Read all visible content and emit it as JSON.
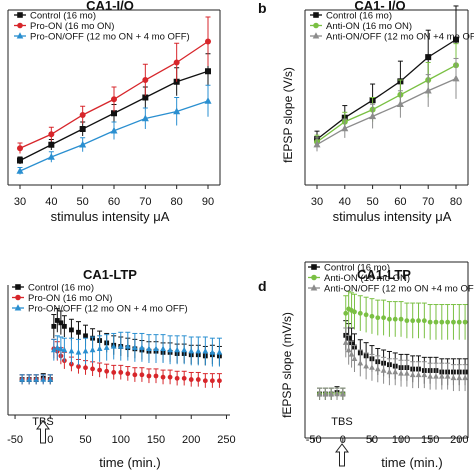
{
  "panels": [
    {
      "letter": "",
      "title": "CA1-I/O",
      "ylabel": "",
      "xlabel": "stimulus intensity μA",
      "annotation": ""
    },
    {
      "letter": "b",
      "title": "CA1- I/O",
      "ylabel": "fEPSP slope (V/s)",
      "xlabel": "stimulus intensity μA",
      "annotation": ""
    },
    {
      "letter": "",
      "title": "CA1-LTP",
      "ylabel": "",
      "xlabel": "time (min.)",
      "annotation": "TBS"
    },
    {
      "letter": "d",
      "title": "CA1-LTP",
      "ylabel": "fEPSP slope (mV/s)",
      "xlabel": "time (min.)",
      "annotation": "TBS"
    }
  ],
  "colors": {
    "black": "#111111",
    "red": "#d7262b",
    "blue": "#2a8fd0",
    "green": "#7ac043",
    "gray": "#8c8c8c"
  },
  "chart_data": [
    {
      "type": "line",
      "title": "CA1-I/O",
      "xlabel": "stimulus intensity μA",
      "ylabel": "",
      "x": [
        30,
        40,
        50,
        60,
        70,
        80,
        90
      ],
      "xticks": [
        "30",
        "40",
        "50",
        "60",
        "70",
        "80",
        "90"
      ],
      "yticks": [],
      "ylim": [
        0,
        1
      ],
      "legend": "top-left",
      "series": [
        {
          "name": "Control (16 mo)",
          "color": "#111111",
          "marker": "square",
          "values": [
            0.14,
            0.23,
            0.32,
            0.41,
            0.5,
            0.59,
            0.65
          ],
          "err": [
            0.02,
            0.03,
            0.04,
            0.05,
            0.06,
            0.08,
            0.1
          ]
        },
        {
          "name": "Pro-ON (16 mo ON)",
          "color": "#d7262b",
          "marker": "circle",
          "values": [
            0.21,
            0.29,
            0.4,
            0.49,
            0.6,
            0.7,
            0.82
          ],
          "err": [
            0.03,
            0.04,
            0.05,
            0.07,
            0.09,
            0.11,
            0.14
          ]
        },
        {
          "name": "Pro-ON/OFF (12 mo ON + 4 mo OFF)",
          "color": "#2a8fd0",
          "marker": "triangle",
          "values": [
            0.08,
            0.16,
            0.23,
            0.31,
            0.38,
            0.42,
            0.48
          ],
          "err": [
            0.02,
            0.03,
            0.04,
            0.05,
            0.06,
            0.08,
            0.09
          ]
        }
      ]
    },
    {
      "type": "line",
      "title": "CA1- I/O",
      "xlabel": "stimulus intensity μA",
      "ylabel": "fEPSP slope (V/s)",
      "x": [
        30,
        40,
        50,
        60,
        70,
        80
      ],
      "xticks": [
        "30",
        "40",
        "50",
        "60",
        "70",
        "80"
      ],
      "yticks": [],
      "ylim": [
        0,
        1.3
      ],
      "legend": "top-left",
      "series": [
        {
          "name": "Control (16 mo)",
          "color": "#111111",
          "marker": "square",
          "values": [
            0.34,
            0.5,
            0.63,
            0.77,
            0.95,
            1.08
          ],
          "err": [
            0.06,
            0.09,
            0.12,
            0.15,
            0.2,
            0.25
          ]
        },
        {
          "name": "Anti-ON (16 mo ON)",
          "color": "#7ac043",
          "marker": "circle",
          "values": [
            0.32,
            0.47,
            0.56,
            0.67,
            0.78,
            0.89
          ],
          "err": [
            0.05,
            0.07,
            0.09,
            0.11,
            0.13,
            0.16
          ]
        },
        {
          "name": "Anti-ON/OFF (12 mo ON +4 mo OFF)",
          "color": "#8c8c8c",
          "marker": "triangle",
          "values": [
            0.3,
            0.42,
            0.51,
            0.6,
            0.7,
            0.79
          ],
          "err": [
            0.05,
            0.07,
            0.09,
            0.1,
            0.12,
            0.15
          ]
        }
      ]
    },
    {
      "type": "scatter",
      "title": "CA1-LTP",
      "xlabel": "time (min.)",
      "ylabel": "",
      "xlim": [
        -60,
        255
      ],
      "ylim": [
        70,
        180
      ],
      "xticks": [
        -50,
        0,
        50,
        100,
        150,
        200,
        250
      ],
      "yticks": [],
      "legend": "top-left",
      "annotation": "TBS",
      "series": [
        {
          "name": "Control (16 mo)",
          "color": "#111111",
          "marker": "square",
          "x": [
            -40,
            -30,
            -20,
            -10,
            0,
            5,
            10,
            15,
            20,
            30,
            40,
            50,
            60,
            70,
            80,
            90,
            100,
            110,
            120,
            130,
            140,
            150,
            160,
            170,
            180,
            190,
            200,
            210,
            220,
            230,
            240
          ],
          "values": [
            100,
            100,
            100,
            101,
            100,
            145,
            150,
            148,
            145,
            142,
            140,
            137,
            135,
            133,
            131,
            129,
            128,
            127,
            126,
            125,
            124,
            124,
            123,
            123,
            122,
            122,
            121,
            121,
            120,
            121,
            120
          ],
          "err": [
            4,
            4,
            4,
            4,
            4,
            10,
            10,
            10,
            9,
            9,
            9,
            9,
            8,
            8,
            8,
            8,
            8,
            8,
            8,
            8,
            8,
            8,
            8,
            8,
            8,
            8,
            8,
            8,
            8,
            8,
            8
          ]
        },
        {
          "name": "Pro-ON (16 mo ON)",
          "color": "#d7262b",
          "marker": "circle",
          "x": [
            -40,
            -30,
            -20,
            -10,
            0,
            5,
            10,
            15,
            20,
            30,
            40,
            50,
            60,
            70,
            80,
            90,
            100,
            110,
            120,
            130,
            140,
            150,
            160,
            170,
            180,
            190,
            200,
            210,
            220,
            230,
            240
          ],
          "values": [
            100,
            100,
            100,
            100,
            100,
            126,
            124,
            120,
            116,
            113,
            111,
            110,
            109,
            108,
            107,
            106,
            106,
            105,
            104,
            104,
            103,
            103,
            102,
            102,
            101,
            101,
            100,
            100,
            99,
            99,
            99
          ],
          "err": [
            4,
            4,
            4,
            4,
            4,
            8,
            8,
            7,
            7,
            6,
            6,
            6,
            6,
            6,
            6,
            6,
            6,
            6,
            6,
            6,
            6,
            6,
            6,
            6,
            6,
            6,
            6,
            6,
            6,
            6,
            6
          ]
        },
        {
          "name": "Pro-ON/OFF (12 mo ON + 4 mo OFF)",
          "color": "#2a8fd0",
          "marker": "triangle",
          "x": [
            -40,
            -30,
            -20,
            -10,
            0,
            5,
            10,
            15,
            20,
            30,
            40,
            50,
            60,
            70,
            80,
            90,
            100,
            110,
            120,
            130,
            140,
            150,
            160,
            170,
            180,
            190,
            200,
            210,
            220,
            230,
            240
          ],
          "values": [
            100,
            100,
            100,
            100,
            100,
            125,
            127,
            126,
            125,
            124,
            123,
            124,
            125,
            126,
            127,
            128,
            128,
            128,
            127,
            127,
            126,
            126,
            126,
            125,
            125,
            125,
            124,
            124,
            124,
            123,
            123
          ],
          "err": [
            4,
            4,
            4,
            4,
            4,
            9,
            10,
            10,
            10,
            11,
            11,
            11,
            11,
            11,
            11,
            11,
            12,
            12,
            12,
            12,
            12,
            12,
            12,
            12,
            12,
            12,
            12,
            12,
            12,
            12,
            12
          ]
        }
      ]
    },
    {
      "type": "scatter",
      "title": "CA1-LTP",
      "xlabel": "time (min.)",
      "ylabel": "fEPSP slope (mV/s)",
      "xlim": [
        -65,
        215
      ],
      "ylim": [
        70,
        190
      ],
      "xticks": [
        -50,
        0,
        50,
        100,
        150,
        200
      ],
      "yticks": [],
      "legend": "top-left",
      "annotation": "TBS",
      "series": [
        {
          "name": "Control (16 mo)",
          "color": "#111111",
          "marker": "square",
          "x": [
            -40,
            -30,
            -20,
            -10,
            0,
            5,
            10,
            15,
            20,
            30,
            40,
            50,
            60,
            70,
            80,
            90,
            100,
            110,
            120,
            130,
            140,
            150,
            160,
            170,
            180,
            190,
            200,
            210
          ],
          "values": [
            100,
            100,
            100,
            101,
            100,
            140,
            138,
            135,
            132,
            128,
            126,
            124,
            122,
            121,
            120,
            119,
            118,
            118,
            117,
            117,
            116,
            116,
            116,
            115,
            115,
            115,
            115,
            115
          ],
          "err": [
            4,
            4,
            4,
            4,
            4,
            10,
            10,
            10,
            9,
            9,
            9,
            9,
            9,
            9,
            9,
            9,
            9,
            9,
            9,
            9,
            9,
            9,
            9,
            9,
            9,
            9,
            9,
            9
          ]
        },
        {
          "name": "Anti-ON (16 mo ON)",
          "color": "#7ac043",
          "marker": "circle",
          "x": [
            -40,
            -30,
            -20,
            -10,
            0,
            5,
            10,
            15,
            20,
            30,
            40,
            50,
            60,
            70,
            80,
            90,
            100,
            110,
            120,
            130,
            140,
            150,
            160,
            170,
            180,
            190,
            200,
            210
          ],
          "values": [
            100,
            100,
            100,
            100,
            100,
            155,
            158,
            157,
            156,
            155,
            154,
            153,
            152,
            152,
            151,
            151,
            151,
            150,
            150,
            150,
            150,
            149,
            149,
            149,
            149,
            149,
            149,
            149
          ],
          "err": [
            4,
            4,
            4,
            4,
            4,
            12,
            12,
            12,
            12,
            12,
            12,
            12,
            12,
            12,
            12,
            12,
            12,
            12,
            12,
            12,
            12,
            12,
            12,
            12,
            12,
            12,
            12,
            12
          ]
        },
        {
          "name": "Anti-ON/OFF (12 mo ON +4 mo OFF)",
          "color": "#8c8c8c",
          "marker": "triangle",
          "x": [
            -40,
            -30,
            -20,
            -10,
            0,
            5,
            10,
            15,
            20,
            30,
            40,
            50,
            60,
            70,
            80,
            90,
            100,
            110,
            120,
            130,
            140,
            150,
            160,
            170,
            180,
            190,
            200,
            210
          ],
          "values": [
            100,
            100,
            100,
            100,
            100,
            135,
            130,
            127,
            124,
            121,
            119,
            118,
            117,
            116,
            115,
            115,
            114,
            114,
            113,
            113,
            113,
            112,
            112,
            112,
            112,
            111,
            111,
            111
          ],
          "err": [
            4,
            4,
            4,
            4,
            4,
            10,
            10,
            9,
            9,
            9,
            9,
            9,
            9,
            9,
            9,
            9,
            9,
            9,
            9,
            9,
            9,
            9,
            9,
            9,
            9,
            9,
            9,
            9
          ]
        }
      ]
    }
  ]
}
